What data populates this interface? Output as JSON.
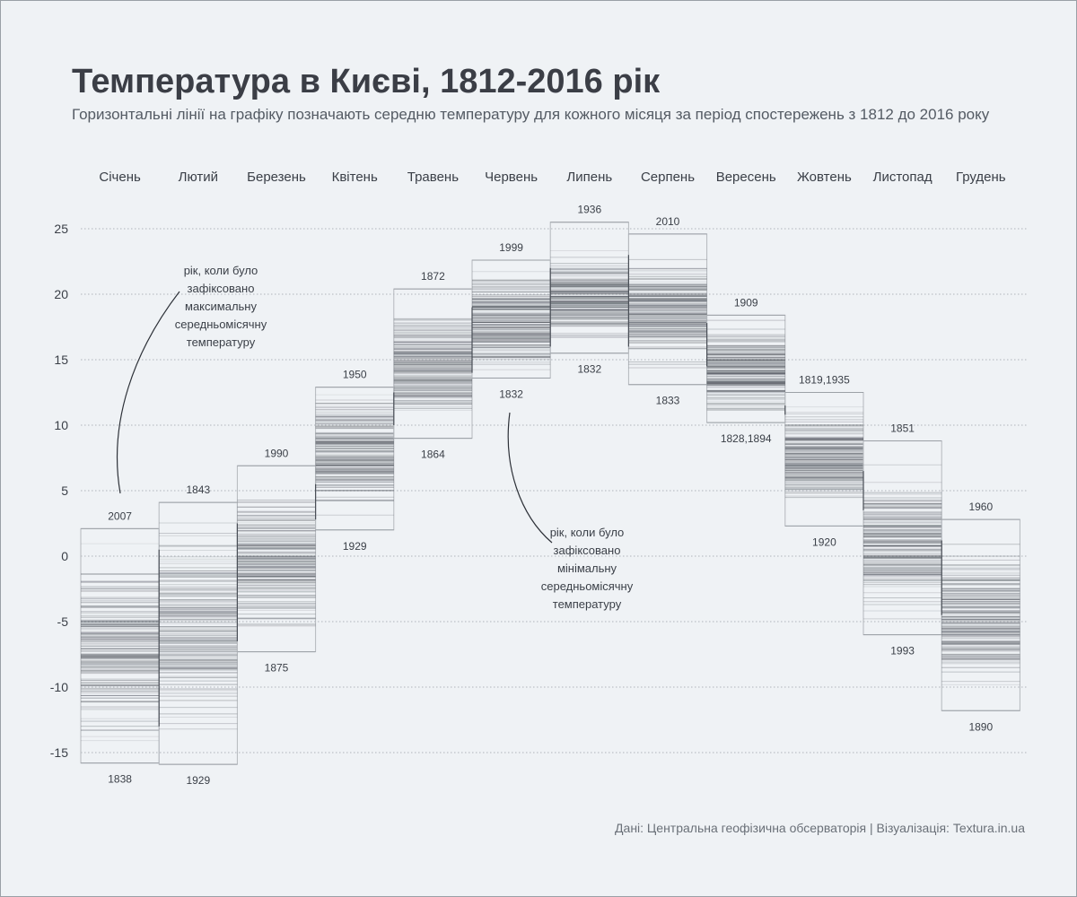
{
  "title": "Температура в Києві, 1812-2016 рік",
  "subtitle": "Горизонтальні лінії на графіку позначають середню температуру для кожного місяця за період спостережень з 1812 до 2016 року",
  "source": "Дані: Центральна геофізична обсерваторія | Візуалізація: Textura.in.ua",
  "annotations": {
    "max_note": [
      "рік, коли було",
      "зафіксовано",
      "максимальну",
      "середньомісячну",
      "температуру"
    ],
    "min_note": [
      "рік, коли було",
      "зафіксовано",
      "мінімальну",
      "середньомісячну",
      "температуру"
    ]
  },
  "chart_data": {
    "type": "heatmap",
    "title": "Температура в Києві, 1812-2016 рік",
    "ylim": [
      -16,
      26
    ],
    "yticks": [
      -15,
      -10,
      -5,
      0,
      5,
      10,
      15,
      20,
      25
    ],
    "grid": true,
    "colors": {
      "line": "#4a4f57",
      "grid": "#9aa0a6",
      "box": "#b4b8bd"
    },
    "months": [
      {
        "name": "Січень",
        "min": -15.8,
        "max": 2.1,
        "min_year": "1838",
        "max_year": "2007",
        "core_min": -15.0,
        "core_max": 0.5
      },
      {
        "name": "Лютий",
        "min": -15.9,
        "max": 4.1,
        "min_year": "1929",
        "max_year": "1843",
        "core_min": -13.0,
        "core_max": 2.5
      },
      {
        "name": "Березень",
        "min": -7.3,
        "max": 6.9,
        "min_year": "1875",
        "max_year": "1990",
        "core_min": -6.5,
        "core_max": 5.5
      },
      {
        "name": "Квітень",
        "min": 2.0,
        "max": 12.9,
        "min_year": "1929",
        "max_year": "1950",
        "core_min": 2.8,
        "core_max": 12.5
      },
      {
        "name": "Травень",
        "min": 9.0,
        "max": 20.4,
        "min_year": "1864",
        "max_year": "1872",
        "core_min": 10.0,
        "core_max": 19.0
      },
      {
        "name": "Червень",
        "min": 13.6,
        "max": 22.6,
        "min_year": "1832",
        "max_year": "1999",
        "core_min": 14.0,
        "core_max": 22.0
      },
      {
        "name": "Липень",
        "min": 15.5,
        "max": 25.5,
        "min_year": "1832",
        "max_year": "1936",
        "core_min": 16.0,
        "core_max": 23.5
      },
      {
        "name": "Серпень",
        "min": 13.1,
        "max": 24.6,
        "min_year": "1833",
        "max_year": "2010",
        "core_min": 14.5,
        "core_max": 23.0
      },
      {
        "name": "Вересень",
        "min": 10.2,
        "max": 18.4,
        "min_year": "1828,1894",
        "max_year": "1909",
        "core_min": 10.8,
        "core_max": 17.8
      },
      {
        "name": "Жовтень",
        "min": 2.3,
        "max": 12.5,
        "min_year": "1920",
        "max_year": "1819,1935",
        "core_min": 3.5,
        "core_max": 11.5
      },
      {
        "name": "Листопад",
        "min": -6.0,
        "max": 8.8,
        "min_year": "1993",
        "max_year": "1851",
        "core_min": -4.5,
        "core_max": 6.5
      },
      {
        "name": "Грудень",
        "min": -11.8,
        "max": 2.8,
        "min_year": "1890",
        "max_year": "1960",
        "core_min": -10.8,
        "core_max": 1.2
      }
    ]
  }
}
